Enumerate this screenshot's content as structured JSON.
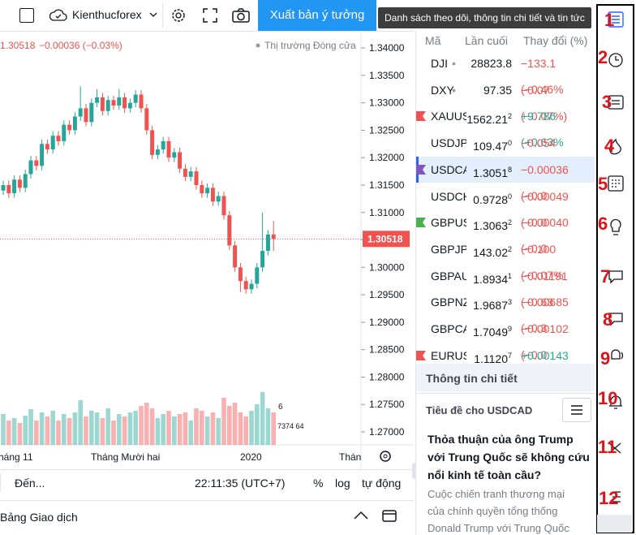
{
  "toolbar": {
    "account": "Kienthucforex",
    "publish": "Xuất bản ý tưởng",
    "tooltip": "Danh sách theo dõi, thông tin chi tiết và tin tức"
  },
  "chart": {
    "type": "candlestick",
    "price": "1.30518",
    "change": "−0.00036 (−0.03%)",
    "status": "Thị trường Đóng cửa",
    "up_color": "#26a69a",
    "down_color": "#ef5350",
    "ylim": [
      1.26763,
      1.34312
    ],
    "yticks": [
      {
        "value": 1.34,
        "label": "1.34000"
      },
      {
        "value": 1.335,
        "label": "1.33500"
      },
      {
        "value": 1.33,
        "label": "1.33000"
      },
      {
        "value": 1.325,
        "label": "1.32500"
      },
      {
        "value": 1.32,
        "label": "1.32000"
      },
      {
        "value": 1.315,
        "label": "1.31500"
      },
      {
        "value": 1.31,
        "label": "1.31000"
      },
      {
        "value": 1.305,
        "label": "1.30500"
      },
      {
        "value": 1.3,
        "label": "1.30000"
      },
      {
        "value": 1.295,
        "label": "1.29500"
      },
      {
        "value": 1.29,
        "label": "1.29000"
      },
      {
        "value": 1.285,
        "label": "1.28500"
      },
      {
        "value": 1.28,
        "label": "1.28000"
      },
      {
        "value": 1.275,
        "label": "1.27500"
      },
      {
        "value": 1.27,
        "label": "1.27000"
      }
    ],
    "last": {
      "value": 1.30518,
      "label": "1.30518"
    },
    "x_labels": [
      "háng 11",
      "Tháng Mười hai",
      "2020",
      "Thán"
    ],
    "markers": [
      "6",
      "7374 64"
    ],
    "candles": [
      [
        1.314,
        1.3158,
        1.3132,
        1.315
      ],
      [
        1.315,
        1.3158,
        1.3127,
        1.3135
      ],
      [
        1.3135,
        1.3168,
        1.3127,
        1.316
      ],
      [
        1.316,
        1.3168,
        1.3137,
        1.3145
      ],
      [
        1.3145,
        1.3178,
        1.3137,
        1.317
      ],
      [
        1.317,
        1.3203,
        1.3162,
        1.3195
      ],
      [
        1.3195,
        1.3203,
        1.3177,
        1.3185
      ],
      [
        1.3185,
        1.3233,
        1.3177,
        1.3225
      ],
      [
        1.3225,
        1.3233,
        1.3207,
        1.3215
      ],
      [
        1.3215,
        1.3248,
        1.3207,
        1.324
      ],
      [
        1.324,
        1.3248,
        1.3222,
        1.323
      ],
      [
        1.323,
        1.3268,
        1.3222,
        1.326
      ],
      [
        1.326,
        1.3268,
        1.3242,
        1.325
      ],
      [
        1.325,
        1.3283,
        1.3242,
        1.3275
      ],
      [
        1.3275,
        1.333,
        1.3267,
        1.329
      ],
      [
        1.329,
        1.3298,
        1.3257,
        1.3265
      ],
      [
        1.3265,
        1.3308,
        1.3257,
        1.33
      ],
      [
        1.33,
        1.3325,
        1.3292,
        1.331
      ],
      [
        1.331,
        1.3318,
        1.3277,
        1.3285
      ],
      [
        1.3285,
        1.3313,
        1.3277,
        1.3305
      ],
      [
        1.3305,
        1.3313,
        1.3287,
        1.3295
      ],
      [
        1.3295,
        1.3325,
        1.3287,
        1.331
      ],
      [
        1.331,
        1.3318,
        1.3282,
        1.329
      ],
      [
        1.329,
        1.3308,
        1.3282,
        1.33
      ],
      [
        1.33,
        1.3323,
        1.3292,
        1.3315
      ],
      [
        1.3315,
        1.3323,
        1.3282,
        1.329
      ],
      [
        1.329,
        1.3298,
        1.3242,
        1.325
      ],
      [
        1.325,
        1.3258,
        1.3197,
        1.3205
      ],
      [
        1.3205,
        1.3223,
        1.3197,
        1.3215
      ],
      [
        1.3215,
        1.3238,
        1.3207,
        1.323
      ],
      [
        1.323,
        1.3238,
        1.3192,
        1.32
      ],
      [
        1.32,
        1.3218,
        1.3192,
        1.321
      ],
      [
        1.321,
        1.3218,
        1.3172,
        1.318
      ],
      [
        1.318,
        1.3188,
        1.3157,
        1.3165
      ],
      [
        1.3165,
        1.3183,
        1.3157,
        1.3175
      ],
      [
        1.3175,
        1.3183,
        1.3142,
        1.315
      ],
      [
        1.315,
        1.3158,
        1.3127,
        1.3135
      ],
      [
        1.3135,
        1.3153,
        1.3127,
        1.3145
      ],
      [
        1.3145,
        1.3153,
        1.3112,
        1.312
      ],
      [
        1.312,
        1.3138,
        1.3112,
        1.313
      ],
      [
        1.313,
        1.3138,
        1.3087,
        1.3095
      ],
      [
        1.3095,
        1.3103,
        1.3032,
        1.304
      ],
      [
        1.304,
        1.3048,
        1.2992,
        1.3
      ],
      [
        1.3,
        1.3008,
        1.2955,
        1.2975
      ],
      [
        1.2975,
        1.2983,
        1.2952,
        1.296
      ],
      [
        1.296,
        1.2978,
        1.2952,
        1.297
      ],
      [
        1.297,
        1.3008,
        1.2962,
        1.3
      ],
      [
        1.3,
        1.31,
        1.2992,
        1.303
      ],
      [
        1.303,
        1.3068,
        1.3022,
        1.306
      ],
      [
        1.306,
        1.3085,
        1.303,
        1.3052
      ]
    ],
    "volumes": [
      38,
      30,
      33,
      27,
      36,
      44,
      30,
      40,
      35,
      42,
      30,
      38,
      33,
      40,
      55,
      35,
      42,
      40,
      33,
      45,
      30,
      38,
      35,
      40,
      42,
      48,
      52,
      45,
      33,
      38,
      42,
      35,
      38,
      40,
      30,
      45,
      42,
      35,
      40,
      33,
      58,
      48,
      52,
      40,
      35,
      42,
      50,
      65,
      45,
      40
    ]
  },
  "bottom_bar": {
    "goto": "Đến...",
    "time": "22:11:35 (UTC+7)",
    "percent": "%",
    "log": "log",
    "auto": "tự động",
    "panel": "Bảng Giao dịch"
  },
  "watchlist": {
    "headers": [
      "Mã",
      "Lần cuối",
      "Thay đổi (%)"
    ],
    "rows": [
      {
        "symbol": "DJI",
        "dot": "•",
        "last": "28823.8",
        "sup": "",
        "change": "−133.1 (−0.46%",
        "flag": ""
      },
      {
        "symbol": "DXY",
        "dot": "•",
        "last": "97.35",
        "sup": "",
        "change": "−0.07 (−0.07%)",
        "flag": ""
      },
      {
        "symbol": "XAUUSD",
        "dot": "",
        "last": "1562.21",
        "sup": "2",
        "change": "+9.786 (+0.63%",
        "flag": "#ef5350"
      },
      {
        "symbol": "USDJPY",
        "dot": "",
        "last": "109.47",
        "sup": "0",
        "change": "−0.054 (−0.05%",
        "flag": ""
      },
      {
        "symbol": "USDCAD",
        "dot": "",
        "last": "1.3051",
        "sup": "8",
        "change": "−0.00036 (−0.0",
        "flag": "#7e57c2"
      },
      {
        "symbol": "USDCHF",
        "dot": "",
        "last": "0.9728",
        "sup": "0",
        "change": "−0.00049 (−0.0",
        "flag": ""
      },
      {
        "symbol": "GBPUSD",
        "dot": "",
        "last": "1.3063",
        "sup": "2",
        "change": "−0.00040 (−0.0",
        "flag": "#4caf50"
      },
      {
        "symbol": "GBPJPY",
        "dot": "",
        "last": "143.02",
        "sup": "2",
        "change": "−0.100 (−0.07%",
        "flag": ""
      },
      {
        "symbol": "GBPAUD",
        "dot": "",
        "last": "1.8934",
        "sup": "1",
        "change": "−0.01191 (−0.63",
        "flag": ""
      },
      {
        "symbol": "GBPNZD",
        "dot": "",
        "last": "1.9687",
        "sup": "3",
        "change": "−0.00685 (−0.3",
        "flag": ""
      },
      {
        "symbol": "GBPCAD",
        "dot": "",
        "last": "1.7049",
        "sup": "9",
        "change": "−0.00102 (−0.0",
        "flag": ""
      },
      {
        "symbol": "EURUSD",
        "dot": "",
        "last": "1.1120",
        "sup": "7",
        "change": "+0.00143 (+0.1",
        "flag": "#ef5350"
      }
    ]
  },
  "details": {
    "title": "Thông tin chi tiết",
    "news_header": "Tiêu đề cho USDCAD",
    "headline": "Thỏa thuận của ông Trump với Trung Quốc sẽ không cứu nổi kinh tế toàn cầu?",
    "body": "Cuộc chiến tranh thương mại của chính quyền tổng thống Donald Trump với Trung Quốc"
  },
  "sidebar": {
    "annotations": [
      "1",
      "2",
      "3",
      "4",
      "5",
      "6",
      "7",
      "8",
      "9",
      "10",
      "11",
      "12"
    ]
  }
}
